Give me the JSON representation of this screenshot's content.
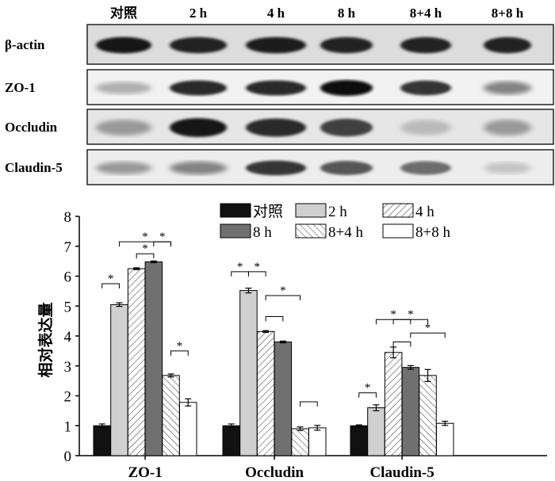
{
  "western_blot": {
    "lanes": [
      "对照",
      "2 h",
      "4 h",
      "8 h",
      "8+4 h",
      "8+8 h"
    ],
    "proteins": [
      "β-actin",
      "ZO-1",
      "Occludin",
      "Claudin-5"
    ]
  },
  "chart_data": {
    "type": "bar",
    "ylabel": "相对表达量",
    "ylim": [
      0,
      8
    ],
    "yticks": [
      0,
      1,
      2,
      3,
      4,
      5,
      6,
      7,
      8
    ],
    "categories": [
      "ZO-1",
      "Occludin",
      "Claudin-5"
    ],
    "legend_position": "top-right",
    "series": [
      {
        "name": "对照",
        "values": [
          1.0,
          1.0,
          1.0
        ],
        "errors": [
          0.06,
          0.06,
          0.03
        ],
        "fill": "#111111",
        "pattern": "solid"
      },
      {
        "name": "2 h",
        "values": [
          5.05,
          5.52,
          1.6
        ],
        "errors": [
          0.06,
          0.08,
          0.1
        ],
        "fill": "#d0d0d0",
        "pattern": "solid"
      },
      {
        "name": "4 h",
        "values": [
          6.25,
          4.15,
          3.45
        ],
        "errors": [
          0.03,
          0.03,
          0.18
        ],
        "fill": "#ffffff",
        "pattern": "forward-hatch"
      },
      {
        "name": "8 h",
        "values": [
          6.48,
          3.8,
          2.95
        ],
        "errors": [
          0.03,
          0.03,
          0.06
        ],
        "fill": "#707070",
        "pattern": "solid"
      },
      {
        "name": "8+4 h",
        "values": [
          2.68,
          0.9,
          2.68
        ],
        "errors": [
          0.05,
          0.06,
          0.2
        ],
        "fill": "#ffffff",
        "pattern": "back-hatch"
      },
      {
        "name": "8+8 h",
        "values": [
          1.78,
          0.93,
          1.08
        ],
        "errors": [
          0.12,
          0.08,
          0.07
        ],
        "fill": "#ffffff",
        "pattern": "solid"
      }
    ],
    "significance": [
      {
        "group": 0,
        "from": 0,
        "to": 1,
        "y": 5.75,
        "label": "*"
      },
      {
        "group": 0,
        "from": 1,
        "to": 4,
        "y": 7.15,
        "label": "*"
      },
      {
        "group": 0,
        "from": 2,
        "to": 3,
        "y": 6.75,
        "label": "*"
      },
      {
        "group": 0,
        "from": 3,
        "to": 4,
        "y": 7.15,
        "label": "*"
      },
      {
        "group": 0,
        "from": 4,
        "to": 5,
        "y": 3.5,
        "label": "*"
      },
      {
        "group": 1,
        "from": 0,
        "to": 1,
        "y": 6.15,
        "label": "*"
      },
      {
        "group": 1,
        "from": 1,
        "to": 2,
        "y": 6.15,
        "label": "*"
      },
      {
        "group": 1,
        "from": 2,
        "to": 3,
        "y": 4.65,
        "label": ""
      },
      {
        "group": 1,
        "from": 2,
        "to": 4,
        "y": 5.35,
        "label": "*"
      },
      {
        "group": 1,
        "from": 4,
        "to": 5,
        "y": 1.8,
        "label": ""
      },
      {
        "group": 2,
        "from": 0,
        "to": 1,
        "y": 2.1,
        "label": "*"
      },
      {
        "group": 2,
        "from": 1,
        "to": 3,
        "y": 4.55,
        "label": "*"
      },
      {
        "group": 2,
        "from": 2,
        "to": 4,
        "y": 4.55,
        "label": "*"
      },
      {
        "group": 2,
        "from": 2,
        "to": 3,
        "y": 3.8,
        "label": ""
      },
      {
        "group": 2,
        "from": 3,
        "to": 5,
        "y": 4.1,
        "label": "*"
      }
    ]
  }
}
